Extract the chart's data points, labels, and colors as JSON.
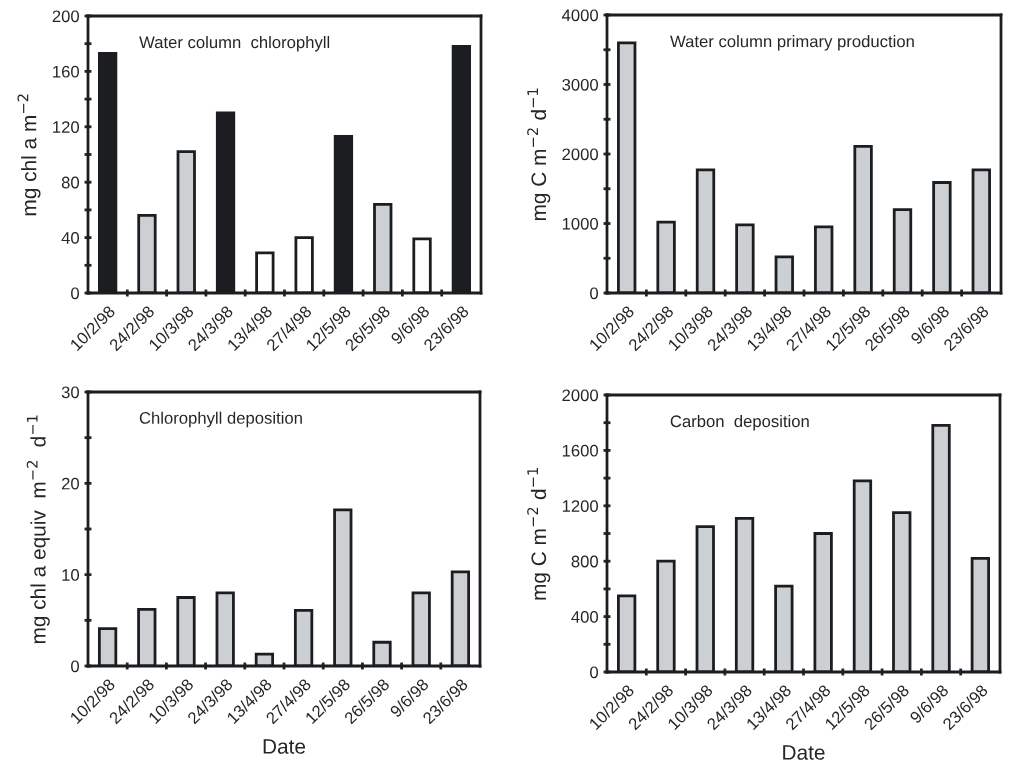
{
  "chart_data": [
    {
      "type": "bar",
      "title": "Water column  chlorophyll",
      "ylabel": "mg chl a m$^{−2}$",
      "categories": [
        "10/2/98",
        "24/2/98",
        "10/3/98",
        "24/3/98",
        "13/4/98",
        "27/4/98",
        "12/5/98",
        "26/5/98",
        "9/6/98",
        "23/6/98"
      ],
      "values": [
        173,
        56,
        102,
        130,
        29,
        40,
        113,
        64,
        39,
        178
      ],
      "colors": [
        "#1c1d20",
        "#cdd0d3",
        "#cdd0d3",
        "#1c1d20",
        "#ffffff",
        "#ffffff",
        "#1c1d20",
        "#cdd0d3",
        "#ffffff",
        "#1c1d20"
      ],
      "ylim": [
        0,
        200
      ],
      "yticks": [
        0,
        {
          "value": 20,
          "label": null
        },
        40,
        {
          "value": 60,
          "label": null
        },
        80,
        {
          "value": 100,
          "label": null
        },
        120,
        {
          "value": 140,
          "label": null
        },
        160,
        {
          "value": 180,
          "label": null
        },
        200
      ],
      "grid": false
    },
    {
      "type": "bar",
      "title": "Water column primary production",
      "ylabel": "mg C m$^{−2}$ d$^{−1}$",
      "categories": [
        "10/2/98",
        "24/2/98",
        "10/3/98",
        "24/3/98",
        "13/4/98",
        "27/4/98",
        "12/5/98",
        "26/5/98",
        "9/6/98",
        "23/6/98"
      ],
      "values": [
        3600,
        1020,
        1770,
        980,
        520,
        950,
        2110,
        1200,
        1590,
        1770
      ],
      "color": "#cdd0d3",
      "ylim": [
        0,
        4000
      ],
      "yticks": [
        0,
        {
          "value": 500,
          "label": null
        },
        1000,
        {
          "value": 1500,
          "label": null
        },
        2000,
        {
          "value": 2500,
          "label": null
        },
        3000,
        {
          "value": 3500,
          "label": null
        },
        4000
      ],
      "grid": false
    },
    {
      "type": "bar",
      "title": "Chlorophyll deposition",
      "ylabel": "mg chl a equiv  m$^{−2}$  d$^{−1}$",
      "xlabel": "Date",
      "categories": [
        "10/2/98",
        "24/2/98",
        "10/3/98",
        "24/3/98",
        "13/4/98",
        "27/4/98",
        "12/5/98",
        "26/5/98",
        "9/6/98",
        "23/6/98"
      ],
      "values": [
        4.1,
        6.2,
        7.5,
        8.0,
        1.3,
        6.1,
        17.1,
        2.6,
        8.0,
        10.3
      ],
      "color": "#cdd0d3",
      "ylim": [
        0,
        30
      ],
      "yticks": [
        0,
        {
          "value": 5,
          "label": null
        },
        10,
        {
          "value": 15,
          "label": null
        },
        20,
        {
          "value": 25,
          "label": null
        },
        30
      ],
      "grid": false
    },
    {
      "type": "bar",
      "title": "Carbon  deposition",
      "ylabel": "mg C m$^{−2}$ d$^{−1}$",
      "xlabel": "Date",
      "categories": [
        "10/2/98",
        "24/2/98",
        "10/3/98",
        "24/3/98",
        "13/4/98",
        "27/4/98",
        "12/5/98",
        "26/5/98",
        "9/6/98",
        "23/6/98"
      ],
      "values": [
        550,
        800,
        1050,
        1110,
        620,
        1000,
        1380,
        1150,
        1780,
        820
      ],
      "color": "#cdd0d3",
      "ylim": [
        0,
        2000
      ],
      "yticks": [
        0,
        {
          "value": 200,
          "label": null
        },
        400,
        {
          "value": 600,
          "label": null
        },
        800,
        {
          "value": 1000,
          "label": null
        },
        1200,
        {
          "value": 1400,
          "label": null
        },
        1600,
        {
          "value": 1800,
          "label": null
        },
        2000
      ],
      "grid": false
    }
  ]
}
